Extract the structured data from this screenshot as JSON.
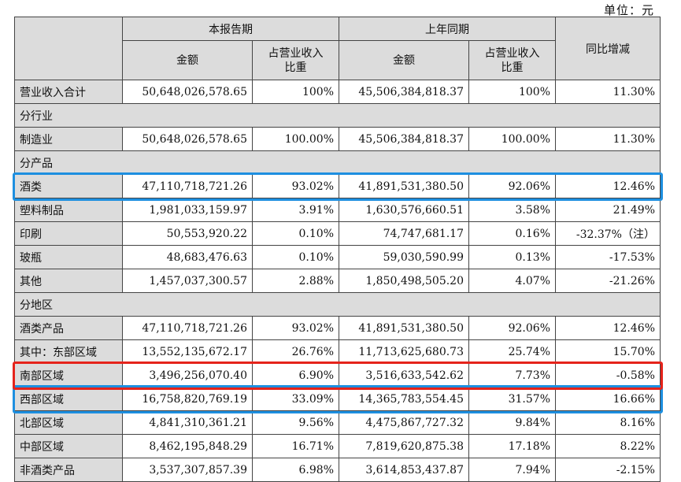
{
  "unit_label": "单位：元",
  "headers": {
    "current_period": "本报告期",
    "prior_period": "上年同期",
    "yoy_change": "同比增减",
    "amount": "金额",
    "share_line1": "占营业收入",
    "share_line2": "比重"
  },
  "rows": [
    {
      "type": "data",
      "label": "营业收入合计",
      "cur_amount": "50,648,026,578.65",
      "cur_share": "100%",
      "prev_amount": "45,506,384,818.37",
      "prev_share": "100%",
      "yoy": "11.30%"
    },
    {
      "type": "section",
      "label": "分行业"
    },
    {
      "type": "data",
      "label": "制造业",
      "cur_amount": "50,648,026,578.65",
      "cur_share": "100.00%",
      "prev_amount": "45,506,384,818.37",
      "prev_share": "100.00%",
      "yoy": "11.30%"
    },
    {
      "type": "section",
      "label": "分产品"
    },
    {
      "type": "data",
      "label": "酒类",
      "cur_amount": "47,110,718,721.26",
      "cur_share": "93.02%",
      "prev_amount": "41,891,531,380.50",
      "prev_share": "92.06%",
      "yoy": "12.46%"
    },
    {
      "type": "data",
      "label": "塑料制品",
      "cur_amount": "1,981,033,159.97",
      "cur_share": "3.91%",
      "prev_amount": "1,630,576,660.51",
      "prev_share": "3.58%",
      "yoy": "21.49%"
    },
    {
      "type": "data",
      "label": "印刷",
      "cur_amount": "50,553,920.22",
      "cur_share": "0.10%",
      "prev_amount": "74,747,681.17",
      "prev_share": "0.16%",
      "yoy": "-32.37%（注）"
    },
    {
      "type": "data",
      "label": "玻瓶",
      "cur_amount": "48,683,476.63",
      "cur_share": "0.10%",
      "prev_amount": "59,030,590.99",
      "prev_share": "0.13%",
      "yoy": "-17.53%"
    },
    {
      "type": "data",
      "label": "其他",
      "cur_amount": "1,457,037,300.57",
      "cur_share": "2.88%",
      "prev_amount": "1,850,498,505.20",
      "prev_share": "4.07%",
      "yoy": "-21.26%"
    },
    {
      "type": "section",
      "label": "分地区"
    },
    {
      "type": "data",
      "label": "酒类产品",
      "cur_amount": "47,110,718,721.26",
      "cur_share": "93.02%",
      "prev_amount": "41,891,531,380.50",
      "prev_share": "92.06%",
      "yoy": "12.46%"
    },
    {
      "type": "data",
      "label": "其中：东部区域",
      "cur_amount": "13,552,135,672.17",
      "cur_share": "26.76%",
      "prev_amount": "11,713,625,680.73",
      "prev_share": "25.74%",
      "yoy": "15.70%"
    },
    {
      "type": "data",
      "indent": true,
      "label": "南部区域",
      "cur_amount": "3,496,256,070.40",
      "cur_share": "6.90%",
      "prev_amount": "3,516,633,542.62",
      "prev_share": "7.73%",
      "yoy": "-0.58%"
    },
    {
      "type": "data",
      "indent": true,
      "label": "西部区域",
      "cur_amount": "16,758,820,769.19",
      "cur_share": "33.09%",
      "prev_amount": "14,365,783,554.45",
      "prev_share": "31.57%",
      "yoy": "16.66%"
    },
    {
      "type": "data",
      "indent": true,
      "label": "北部区域",
      "cur_amount": "4,841,310,361.21",
      "cur_share": "9.56%",
      "prev_amount": "4,475,867,727.32",
      "prev_share": "9.84%",
      "yoy": "8.16%"
    },
    {
      "type": "data",
      "indent": true,
      "label": "中部区域",
      "cur_amount": "8,462,195,848.29",
      "cur_share": "16.71%",
      "prev_amount": "7,819,620,875.38",
      "prev_share": "17.18%",
      "yoy": "8.22%"
    },
    {
      "type": "data",
      "label": "非酒类产品",
      "cur_amount": "3,537,307,857.39",
      "cur_share": "6.98%",
      "prev_amount": "3,614,853,437.87",
      "prev_share": "7.94%",
      "yoy": "-2.15%"
    }
  ],
  "highlights": {
    "blue": [
      "酒类",
      "西部区域"
    ],
    "red": [
      "南部区域"
    ],
    "colors": {
      "blue": "#1d8fe0",
      "red": "#e5231b"
    }
  }
}
